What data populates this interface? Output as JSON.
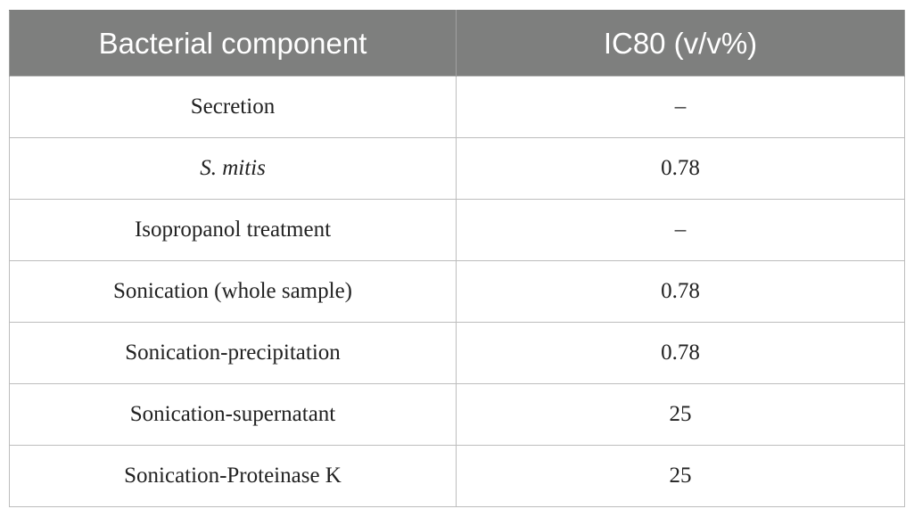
{
  "table": {
    "headers": [
      "Bacterial component",
      "IC80 (v/v%)"
    ],
    "rows": [
      {
        "component": "Secretion",
        "ic80": "–",
        "italic": false
      },
      {
        "component": "S. mitis",
        "ic80": "0.78",
        "italic": true
      },
      {
        "component": "Isopropanol treatment",
        "ic80": "–",
        "italic": false
      },
      {
        "component": "Sonication (whole sample)",
        "ic80": "0.78",
        "italic": false
      },
      {
        "component": "Sonication-precipitation",
        "ic80": "0.78",
        "italic": false
      },
      {
        "component": "Sonication-supernatant",
        "ic80": "25",
        "italic": false
      },
      {
        "component": "Sonication-Proteinase K",
        "ic80": "25",
        "italic": false
      }
    ]
  }
}
